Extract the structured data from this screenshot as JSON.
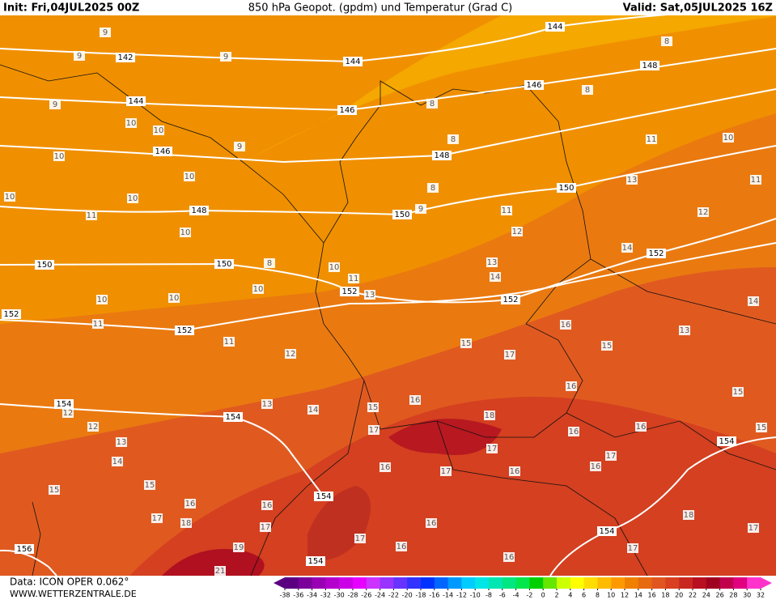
{
  "header": {
    "init": "Init: Fri,04JUL2025 00Z",
    "title": "850 hPa Geopot. (gpdm) und Temperatur (Grad C)",
    "valid": "Valid: Sat,05JUL2025 16Z"
  },
  "footer": {
    "data": "Data: ICON OPER 0.062°",
    "site": "WWW.WETTERZENTRALE.DE"
  },
  "isohypse_labels": [
    144,
    142,
    144,
    148,
    146,
    144,
    146,
    146,
    148,
    150,
    148,
    150,
    152,
    150,
    150,
    152,
    152,
    152,
    152,
    154,
    154,
    154,
    154,
    154,
    156,
    154
  ],
  "isotherm_labels": [
    9,
    9,
    9,
    8,
    9,
    10,
    10,
    10,
    9,
    10,
    10,
    10,
    11,
    10,
    8,
    10,
    11,
    13,
    10,
    10,
    10,
    11,
    11,
    12,
    11,
    10,
    13,
    11,
    12,
    11,
    12,
    14,
    13,
    14,
    14,
    13,
    16,
    15,
    17,
    15,
    15,
    15,
    16,
    16,
    15,
    14,
    13,
    12,
    13,
    14,
    15,
    15,
    17,
    18,
    16,
    16,
    17,
    17,
    16,
    16,
    17,
    16,
    16,
    16,
    17,
    18,
    17,
    18,
    17,
    16,
    16,
    17,
    19,
    16,
    17,
    21,
    12,
    8,
    8,
    9,
    8,
    8
  ],
  "colorbar": {
    "ticks": [
      -38,
      -36,
      -34,
      -32,
      -30,
      -28,
      -26,
      -24,
      -22,
      -20,
      -18,
      -16,
      -14,
      -12,
      -10,
      -8,
      -6,
      -4,
      -2,
      0,
      2,
      4,
      6,
      8,
      10,
      12,
      14,
      16,
      18,
      20,
      22,
      24,
      26,
      28,
      30,
      32
    ],
    "colors": [
      "#5a0080",
      "#7a0099",
      "#9900b3",
      "#b300cc",
      "#cc00e6",
      "#e600ff",
      "#cc33ff",
      "#9933ff",
      "#6633ff",
      "#3333ff",
      "#0033ff",
      "#0066ff",
      "#0099ff",
      "#00ccff",
      "#00e6e6",
      "#00e6b3",
      "#00e680",
      "#00e64d",
      "#00d000",
      "#66e600",
      "#ccff00",
      "#ffff00",
      "#ffdd00",
      "#ffbb00",
      "#ff9900",
      "#f08000",
      "#e86a10",
      "#e05520",
      "#d84020",
      "#c82820",
      "#b81020",
      "#a00020",
      "#c0004d",
      "#e00080",
      "#ff33cc"
    ]
  }
}
